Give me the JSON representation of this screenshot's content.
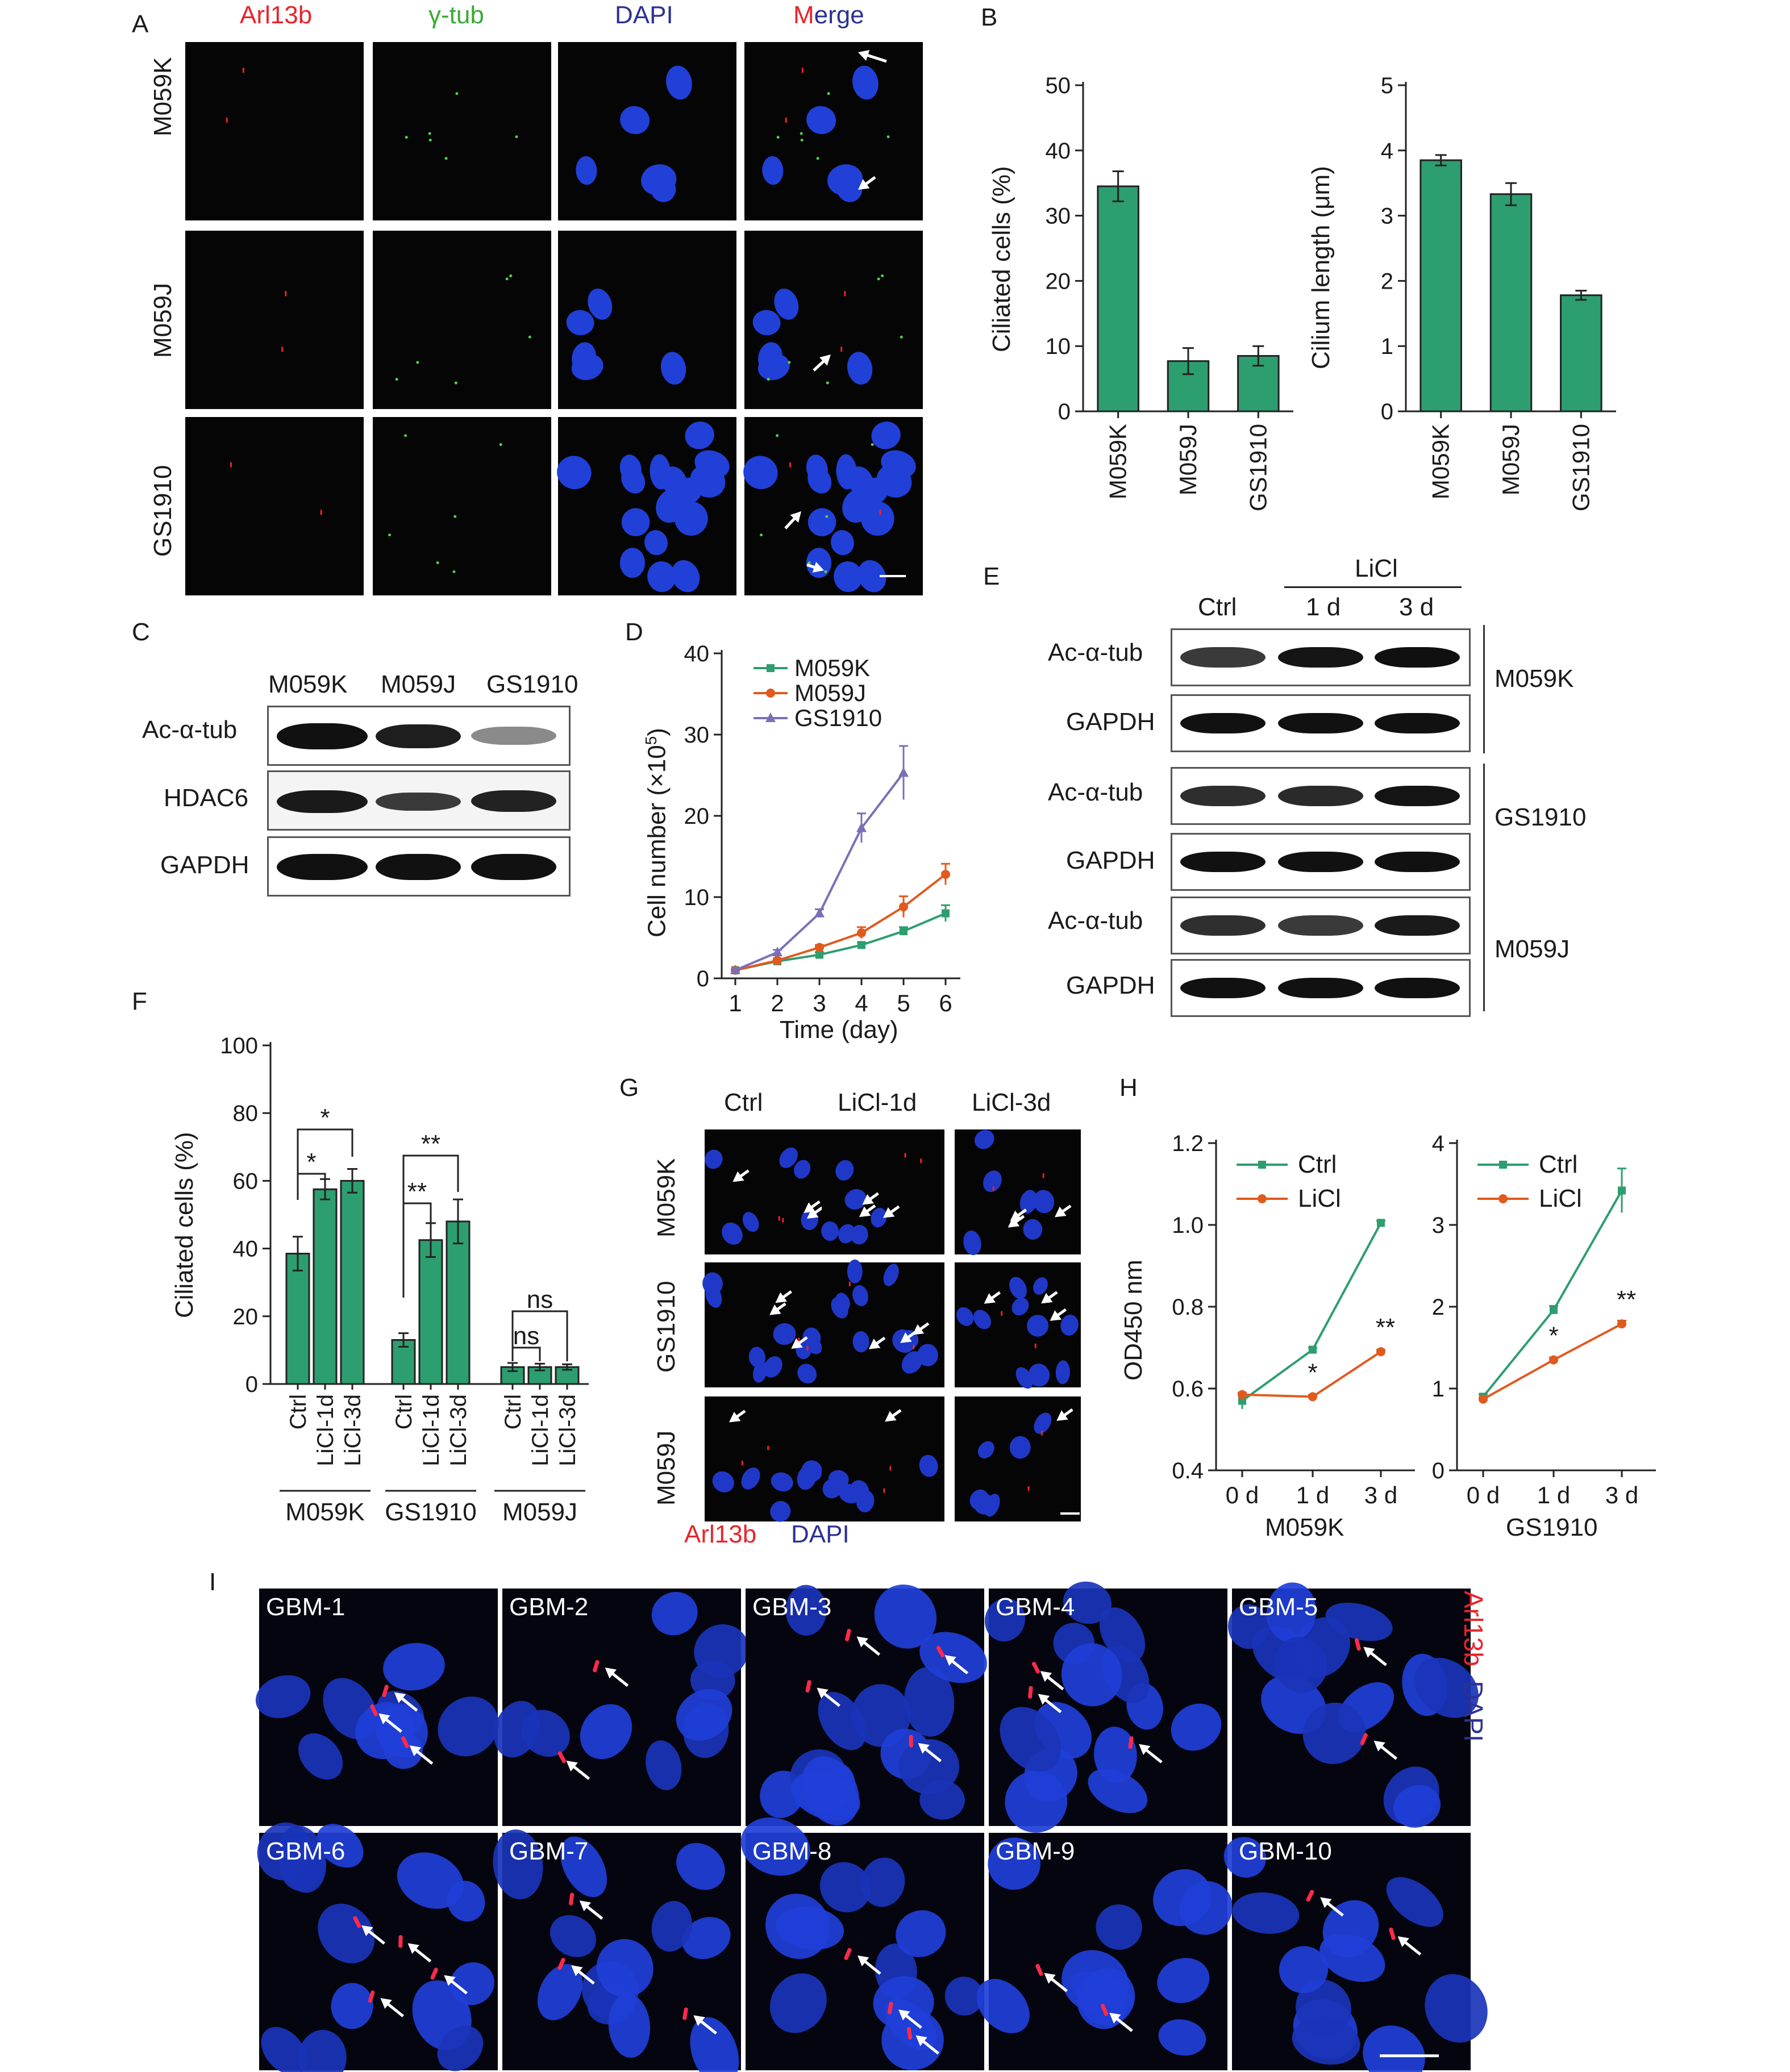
{
  "panels": {
    "A": "A",
    "B": "B",
    "C": "C",
    "D": "D",
    "E": "E",
    "F": "F",
    "G": "G",
    "H": "H",
    "I": "I"
  },
  "A": {
    "channels": [
      "Arl13b",
      "γ-tub",
      "DAPI",
      "Merge"
    ],
    "merge_parts": [
      "M",
      "erge"
    ],
    "rows": [
      "M059K",
      "M059J",
      "GS1910"
    ],
    "colors": {
      "arl13b": "#e8242b",
      "gtub": "#3aaa35",
      "dapi": "#2e3192"
    }
  },
  "B": {
    "charts": [
      {
        "type": "bar",
        "categories": [
          "M059K",
          "M059J",
          "GS1910"
        ],
        "values": [
          34.5,
          7.7,
          8.5
        ],
        "errors": [
          2.3,
          2.0,
          1.5
        ],
        "ylabel": "Ciliated cells (%)",
        "ylim": [
          0,
          50
        ],
        "yticks": [
          0,
          10,
          20,
          30,
          40,
          50
        ],
        "color": "#2d9e6f"
      },
      {
        "type": "bar",
        "categories": [
          "M059K",
          "M059J",
          "GS1910"
        ],
        "values": [
          3.85,
          3.33,
          1.78
        ],
        "errors": [
          0.08,
          0.17,
          0.07
        ],
        "ylabel": "Cilium length (μm)",
        "ylim": [
          0,
          5
        ],
        "yticks": [
          0,
          1,
          2,
          3,
          4,
          5
        ],
        "color": "#2d9e6f"
      }
    ]
  },
  "C": {
    "lanes": [
      "M059K",
      "M059J",
      "GS1910"
    ],
    "rows": [
      "Ac-α-tub",
      "HDAC6",
      "GAPDH"
    ]
  },
  "D": {
    "type": "line",
    "x": [
      1,
      2,
      3,
      4,
      5,
      6
    ],
    "xlabel": "Time (day)",
    "ylabel_main": "Cell number (×10",
    "ylabel_sup": "5",
    "ylabel_end": ")",
    "ylim": [
      0,
      40
    ],
    "yticks": [
      0,
      10,
      20,
      30,
      40
    ],
    "series": [
      {
        "name": "M059K",
        "values": [
          1,
          2.1,
          2.9,
          4.1,
          5.8,
          8.0
        ],
        "errors": [
          0.1,
          0.2,
          0.3,
          0.3,
          0.5,
          1.0
        ],
        "color": "#2d9e6f",
        "marker": "square"
      },
      {
        "name": "M059J",
        "values": [
          1,
          2.2,
          3.8,
          5.6,
          8.8,
          12.8
        ],
        "errors": [
          0.1,
          0.2,
          0.3,
          0.7,
          1.3,
          1.3
        ],
        "color": "#e05a1e",
        "marker": "circle"
      },
      {
        "name": "GS1910",
        "values": [
          1,
          3.2,
          8.0,
          18.5,
          25.3,
          null
        ],
        "errors": [
          0.1,
          0.3,
          0.5,
          1.8,
          3.3,
          null
        ],
        "color": "#7b6fb8",
        "marker": "triangle"
      }
    ]
  },
  "E": {
    "treatment": "LiCl",
    "lanes": [
      "Ctrl",
      "1 d",
      "3 d"
    ],
    "groups": [
      {
        "name": "M059K",
        "rows": [
          "Ac-α-tub",
          "GAPDH"
        ]
      },
      {
        "name": "GS1910",
        "rows": [
          "Ac-α-tub",
          "GAPDH"
        ]
      },
      {
        "name": "M059J",
        "rows": [
          "Ac-α-tub",
          "GAPDH"
        ]
      }
    ]
  },
  "F": {
    "type": "bar",
    "ylabel": "Ciliated cells (%)",
    "ylim": [
      0,
      100
    ],
    "yticks": [
      0,
      20,
      40,
      60,
      80,
      100
    ],
    "categories": [
      "Ctrl",
      "LiCl-1d",
      "LiCl-3d"
    ],
    "groups": [
      {
        "name": "M059K",
        "values": [
          38.5,
          57.5,
          60
        ],
        "errors": [
          5,
          3,
          3.5
        ]
      },
      {
        "name": "GS1910",
        "values": [
          13,
          42.5,
          48
        ],
        "errors": [
          2,
          5,
          6.5
        ]
      },
      {
        "name": "M059J",
        "values": [
          5,
          5,
          5
        ],
        "errors": [
          1.2,
          1,
          0.8
        ]
      }
    ],
    "sig": {
      "star1": "*",
      "star2": "**",
      "ns": "ns"
    },
    "color": "#2d9e6f"
  },
  "G": {
    "columns": [
      "Ctrl",
      "LiCl-1d",
      "LiCl-3d"
    ],
    "rows": [
      "M059K",
      "GS1910",
      "M059J"
    ],
    "legend": [
      "Arl13b",
      "DAPI"
    ]
  },
  "H": {
    "charts": [
      {
        "type": "line",
        "x": [
          "0 d",
          "1 d",
          "3 d"
        ],
        "xlabel": "M059K",
        "ylabel": "OD450 nm",
        "ylim": [
          0.4,
          1.2
        ],
        "yticks": [
          "0.4",
          "0.6",
          "0.8",
          "1.0",
          "1.2"
        ],
        "series": [
          {
            "name": "Ctrl",
            "values": [
              0.57,
              0.695,
              1.005
            ],
            "errors": [
              0.02,
              0.005,
              0.005
            ],
            "color": "#2d9e6f"
          },
          {
            "name": "LiCl",
            "values": [
              0.585,
              0.58,
              0.69
            ],
            "errors": [
              0.005,
              0.005,
              0.005
            ],
            "color": "#e05a1e"
          }
        ],
        "sig": [
          "",
          "*",
          "**"
        ]
      },
      {
        "type": "line",
        "x": [
          "0 d",
          "1 d",
          "3 d"
        ],
        "xlabel": "GS1910",
        "ylabel": "",
        "ylim": [
          0,
          4
        ],
        "yticks": [
          "0",
          "1",
          "2",
          "3",
          "4"
        ],
        "series": [
          {
            "name": "Ctrl",
            "values": [
              0.9,
              1.96,
              3.42
            ],
            "errors": [
              0.03,
              0.05,
              0.27
            ],
            "color": "#2d9e6f"
          },
          {
            "name": "LiCl",
            "values": [
              0.87,
              1.35,
              1.79
            ],
            "errors": [
              0.02,
              0.03,
              0.04
            ],
            "color": "#e05a1e"
          }
        ],
        "sig": [
          "",
          "*",
          "**"
        ]
      }
    ]
  },
  "I": {
    "tiles": [
      "GBM-1",
      "GBM-2",
      "GBM-3",
      "GBM-4",
      "GBM-5",
      "GBM-6",
      "GBM-7",
      "GBM-8",
      "GBM-9",
      "GBM-10"
    ],
    "legend": [
      "Arl13b",
      "DAPI"
    ]
  }
}
